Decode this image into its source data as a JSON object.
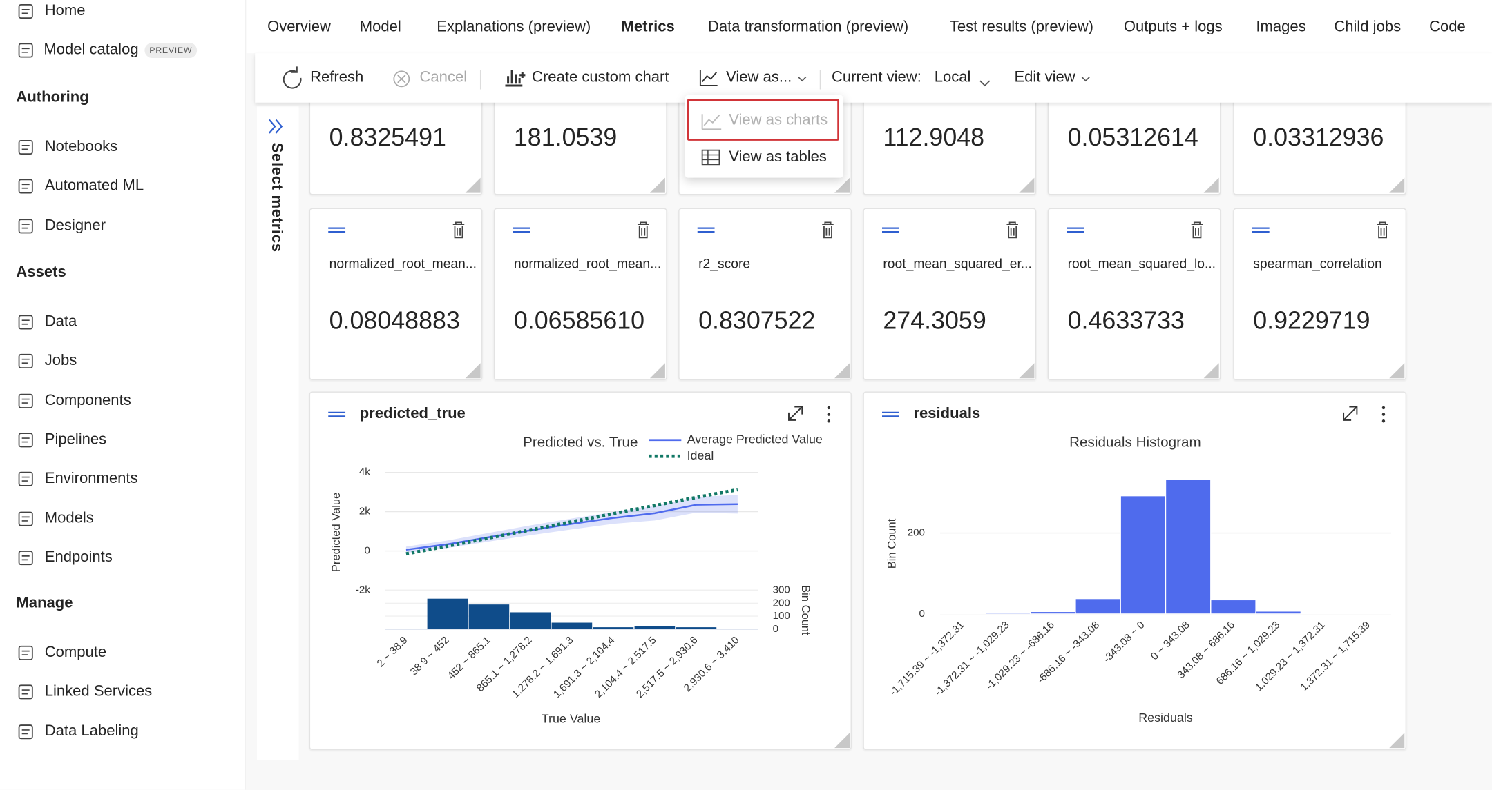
{
  "sidebar": {
    "top": [
      {
        "label": "Home"
      },
      {
        "label": "Model catalog",
        "badge": "PREVIEW"
      }
    ],
    "sections": [
      {
        "title": "Authoring",
        "items": [
          {
            "label": "Notebooks"
          },
          {
            "label": "Automated ML",
            "active": true
          },
          {
            "label": "Designer"
          }
        ]
      },
      {
        "title": "Assets",
        "items": [
          {
            "label": "Data"
          },
          {
            "label": "Jobs"
          },
          {
            "label": "Components"
          },
          {
            "label": "Pipelines"
          },
          {
            "label": "Environments"
          },
          {
            "label": "Models"
          },
          {
            "label": "Endpoints"
          }
        ]
      },
      {
        "title": "Manage",
        "items": [
          {
            "label": "Compute"
          },
          {
            "label": "Linked Services"
          },
          {
            "label": "Data Labeling"
          }
        ]
      }
    ]
  },
  "tabs": [
    {
      "label": "Overview"
    },
    {
      "label": "Model"
    },
    {
      "label": "Explanations (preview)"
    },
    {
      "label": "Metrics",
      "active": true
    },
    {
      "label": "Data transformation (preview)"
    },
    {
      "label": "Test results (preview)"
    },
    {
      "label": "Outputs + logs"
    },
    {
      "label": "Images"
    },
    {
      "label": "Child jobs"
    },
    {
      "label": "Code"
    }
  ],
  "toolbar": {
    "refresh": "Refresh",
    "cancel": "Cancel",
    "custom_chart": "Create custom chart",
    "view_as": "View as...",
    "current_view_label": "Current view:",
    "current_view": "Local",
    "edit_view": "Edit view"
  },
  "view_menu": [
    "View as charts",
    "View as tables"
  ],
  "side_panel": "Select metrics",
  "metrics": {
    "row1": [
      {
        "value": "0.8325491"
      },
      {
        "value": "181.0539"
      },
      {
        "value": "112.9048"
      },
      {
        "value": "0.05312614"
      },
      {
        "value": "0.03312936"
      }
    ],
    "row2": [
      {
        "name": "normalized_root_mean...",
        "value": "0.08048883"
      },
      {
        "name": "normalized_root_mean...",
        "value": "0.06585610"
      },
      {
        "name": "r2_score",
        "value": "0.8307522"
      },
      {
        "name": "root_mean_squared_er...",
        "value": "274.3059"
      },
      {
        "name": "root_mean_squared_lo...",
        "value": "0.4633733"
      },
      {
        "name": "spearman_correlation",
        "value": "0.9229719"
      }
    ]
  },
  "chart_data": [
    {
      "type": "line",
      "card_title": "predicted_true",
      "title": "Predicted vs. True",
      "categories": [
        "2 ~ 38.9",
        "38.9 ~ 452",
        "452 ~ 865.1",
        "865.1 ~ 1,278.2",
        "1,278.2 ~ 1,691.3",
        "1,691.3 ~ 2,104.4",
        "2,104.4 ~ 2,517.5",
        "2,517.5 ~ 2,930.6",
        "2,930.6 ~ 3,410"
      ],
      "xlabel": "True Value",
      "ylabel": "Predicted Value",
      "ylim": [
        -2000,
        4000
      ],
      "yticks": [
        {
          "value": 4000,
          "label": "4k"
        },
        {
          "value": 2000,
          "label": "2k"
        },
        0,
        {
          "value": -2000,
          "label": "-2k"
        }
      ],
      "grid": true,
      "series": [
        {
          "name": "Average Predicted Value",
          "color": "#4f6bed",
          "values": [
            60,
            340,
            700,
            1050,
            1380,
            1680,
            1920,
            2350,
            2380
          ],
          "lower": [
            -100,
            150,
            480,
            800,
            1100,
            1380,
            1550,
            1950,
            1900
          ],
          "upper": [
            220,
            530,
            920,
            1300,
            1650,
            1980,
            2290,
            2750,
            2850
          ]
        },
        {
          "name": "Ideal",
          "color": "#117865",
          "dotted": true,
          "values": [
            -150,
            245,
            659,
            1072,
            1485,
            1898,
            2311,
            2724,
            3120
          ]
        }
      ],
      "histogram": {
        "ylabel": "Bin Count",
        "color": "#0f4c8a",
        "values": [
          2,
          235,
          190,
          130,
          50,
          15,
          25,
          15,
          2
        ],
        "ylim": [
          0,
          300
        ],
        "yticks": [
          0,
          100,
          200,
          300
        ]
      }
    },
    {
      "type": "bar",
      "card_title": "residuals",
      "title": "Residuals Histogram",
      "categories": [
        "-1,715.39 ~ -1,372.31",
        "-1,372.31 ~ -1,029.23",
        "-1,029.23 ~ -686.16",
        "-686.16 ~ -343.08",
        "-343.08 ~ 0",
        "0 ~ 343.08",
        "343.08 ~ 686.16",
        "686.16 ~ 1,029.23",
        "1,029.23 ~ 1,372.31",
        "1,372.31 ~ 1,715.39"
      ],
      "values": [
        1,
        3,
        6,
        38,
        292,
        332,
        35,
        7,
        1,
        1
      ],
      "color": "#4f6bed",
      "xlabel": "Residuals",
      "ylabel": "Bin Count",
      "ylim": [
        0,
        350
      ],
      "yticks": [
        0,
        200
      ],
      "grid": true
    }
  ]
}
